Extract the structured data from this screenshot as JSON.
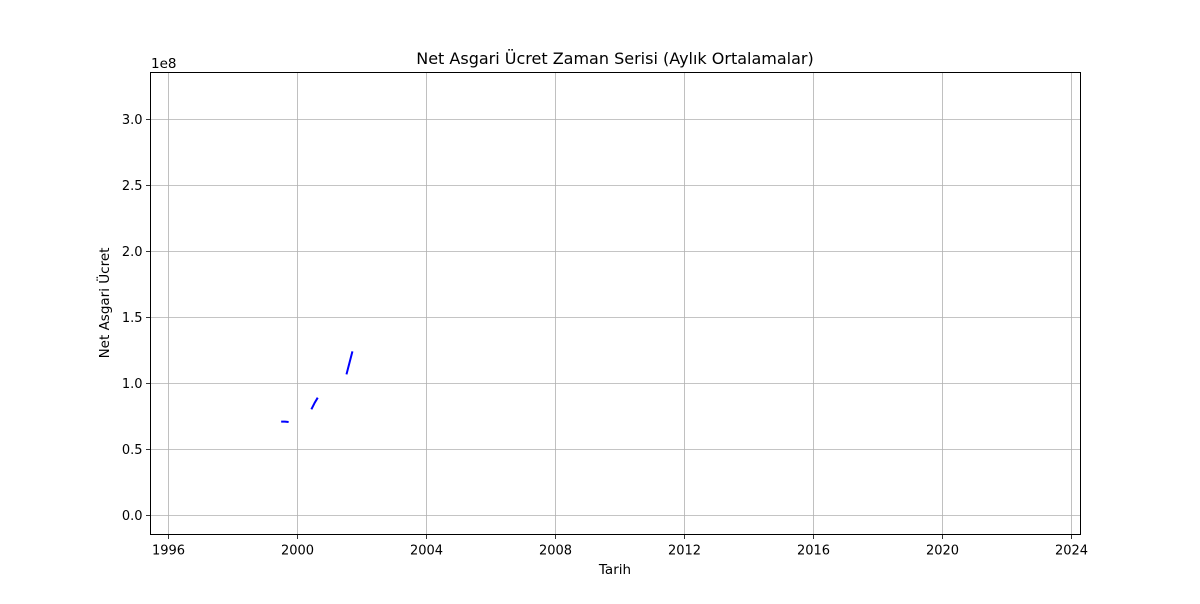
{
  "chart_data": {
    "type": "line",
    "title": "Net Asgari Ücret Zaman Serisi (Aylık Ortalamalar)",
    "xlabel": "Tarih",
    "ylabel": "Net Asgari Ücret",
    "y_offset_label": "1e8",
    "x_axis": {
      "kind": "date",
      "range": [
        "1995-06-15",
        "2024-04-15"
      ],
      "ticks": [
        {
          "date": "1996-01-01",
          "label": "1996"
        },
        {
          "date": "2000-01-01",
          "label": "2000"
        },
        {
          "date": "2004-01-01",
          "label": "2004"
        },
        {
          "date": "2008-01-01",
          "label": "2008"
        },
        {
          "date": "2012-01-01",
          "label": "2012"
        },
        {
          "date": "2016-01-01",
          "label": "2016"
        },
        {
          "date": "2020-01-01",
          "label": "2020"
        },
        {
          "date": "2024-01-01",
          "label": "2024"
        }
      ]
    },
    "y_axis": {
      "scale_multiplier": 100000000,
      "range": [
        -0.15,
        3.35
      ],
      "ticks": [
        {
          "value": 0.0,
          "label": "0.0"
        },
        {
          "value": 0.5,
          "label": "0.5"
        },
        {
          "value": 1.0,
          "label": "1.0"
        },
        {
          "value": 1.5,
          "label": "1.5"
        },
        {
          "value": 2.0,
          "label": "2.0"
        },
        {
          "value": 2.5,
          "label": "2.5"
        },
        {
          "value": 3.0,
          "label": "3.0"
        }
      ]
    },
    "grid": true,
    "legend": "none",
    "series_color": "#0000ff",
    "segments": [
      [
        {
          "date": "1999-07-15",
          "y": 0.705
        },
        {
          "date": "1999-08-15",
          "y": 0.705
        },
        {
          "date": "1999-09-15",
          "y": 0.703
        }
      ],
      [
        {
          "date": "2000-06-15",
          "y": 0.805
        },
        {
          "date": "2000-07-15",
          "y": 0.845
        },
        {
          "date": "2000-08-15",
          "y": 0.88
        }
      ],
      [
        {
          "date": "2001-07-15",
          "y": 1.07
        },
        {
          "date": "2001-08-15",
          "y": 1.15
        },
        {
          "date": "2001-09-15",
          "y": 1.23
        }
      ]
    ]
  }
}
